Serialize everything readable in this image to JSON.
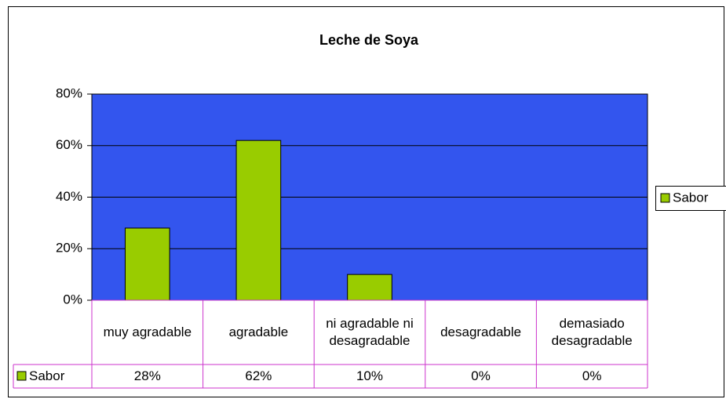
{
  "chart_data": {
    "type": "bar",
    "title": "Leche de Soya",
    "categories": [
      "muy agradable",
      "agradable",
      "ni agradable ni desagradable",
      "desagradable",
      "demasiado desagradable"
    ],
    "series": [
      {
        "name": "Sabor",
        "color": "#99cc00",
        "values": [
          28,
          62,
          10,
          0,
          0
        ],
        "value_labels": [
          "28%",
          "62%",
          "10%",
          "0%",
          "0%"
        ]
      }
    ],
    "ylim": [
      0,
      80
    ],
    "yticks": [
      {
        "value": 0,
        "label": "0%"
      },
      {
        "value": 20,
        "label": "20%"
      },
      {
        "value": 40,
        "label": "40%"
      },
      {
        "value": 60,
        "label": "60%"
      },
      {
        "value": 80,
        "label": "80%"
      }
    ],
    "grid": true,
    "legend": "right",
    "plot_background": "#3355ee",
    "data_table": true
  }
}
